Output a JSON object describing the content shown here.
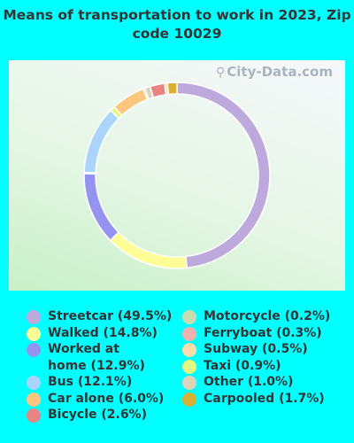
{
  "chart_data": {
    "type": "pie",
    "title": "Means of transportation to work in 2023, Zip code 10029",
    "categories": [
      "Streetcar",
      "Walked",
      "Worked at home",
      "Bus",
      "Car alone",
      "Bicycle",
      "Motorcycle",
      "Ferryboat",
      "Subway",
      "Taxi",
      "Other",
      "Carpooled"
    ],
    "values": [
      49.5,
      14.8,
      12.9,
      12.1,
      6.0,
      2.6,
      0.2,
      0.3,
      0.5,
      0.9,
      1.0,
      1.7
    ],
    "colors": [
      "#bda9dc",
      "#fdfd96",
      "#9494f0",
      "#aad4fa",
      "#fcc67e",
      "#e88484",
      "#c9dcb0",
      "#f0b0b0",
      "#fcdcaa",
      "#e2f882",
      "#dcd4b8",
      "#d8b034"
    ],
    "ring_order": [
      "Streetcar",
      "Walked",
      "Worked at home",
      "Motorcycle",
      "Bus",
      "Taxi",
      "Car alone",
      "Ferryboat",
      "Other",
      "Bicycle",
      "Subway",
      "Carpooled"
    ],
    "legend": {
      "left": [
        "Streetcar (49.5%)",
        "Walked (14.8%)",
        "Worked at home (12.9%)",
        "Bus (12.1%)",
        "Car alone (6.0%)",
        "Bicycle (2.6%)"
      ],
      "right": [
        "Motorcycle (0.2%)",
        "Ferryboat (0.3%)",
        "Subway (0.5%)",
        "Taxi (0.9%)",
        "Other (1.0%)",
        "Carpooled (1.7%)"
      ],
      "placement": "bottom"
    }
  },
  "watermark": "City-Data.com"
}
